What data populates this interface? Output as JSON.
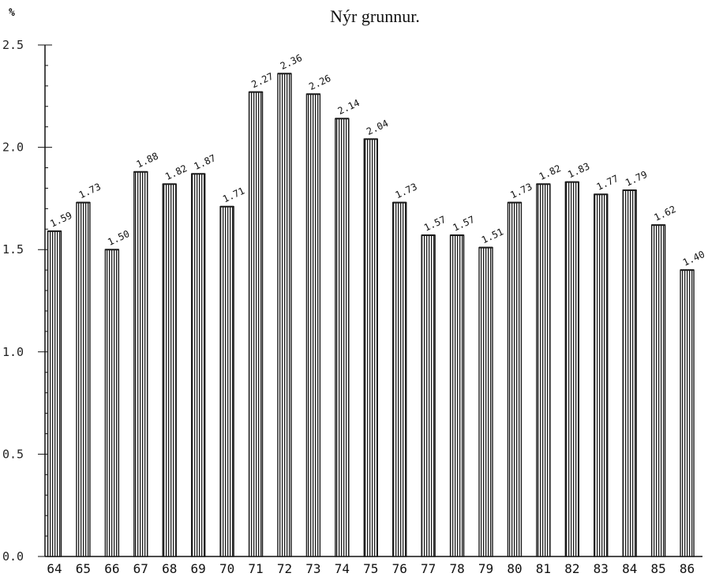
{
  "chart_data": {
    "type": "bar",
    "subtitle": "Nýr grunnur.",
    "unit_label": "%",
    "ylim": [
      0,
      2.5
    ],
    "yticks": [
      "0.0",
      "0.5",
      "1.0",
      "1.5",
      "2.0",
      "2.5"
    ],
    "categories": [
      "64",
      "65",
      "66",
      "67",
      "68",
      "69",
      "70",
      "71",
      "72",
      "73",
      "74",
      "75",
      "76",
      "77",
      "78",
      "79",
      "80",
      "81",
      "82",
      "83",
      "84",
      "85",
      "86"
    ],
    "values": [
      1.59,
      1.73,
      1.5,
      1.88,
      1.82,
      1.87,
      1.71,
      2.27,
      2.36,
      2.26,
      2.14,
      2.04,
      1.73,
      1.57,
      1.57,
      1.51,
      1.73,
      1.82,
      1.83,
      1.77,
      1.79,
      1.62,
      1.4
    ],
    "data_labels": [
      "1.59",
      "1.73",
      "1.50",
      "1.88",
      "1.82",
      "1.87",
      "1.71",
      "2.27",
      "2.36",
      "2.26",
      "2.14",
      "2.04",
      "1.73",
      "1.57",
      "1.57",
      "1.51",
      "1.73",
      "1.82",
      "1.83",
      "1.77",
      "1.79",
      "1.62",
      "1.40"
    ],
    "grid": false,
    "bar_color": "#1a1a1a"
  }
}
